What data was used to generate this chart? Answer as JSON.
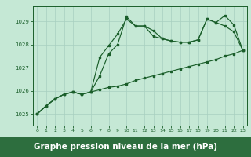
{
  "background_color": "#c5e8d5",
  "grid_color": "#a8cfc0",
  "line_color": "#1a5e2a",
  "title": "Graphe pression niveau de la mer (hPa)",
  "title_fontsize": 7.5,
  "title_bg": "#2d6e3e",
  "ylim": [
    1024.5,
    1029.65
  ],
  "yticks": [
    1025,
    1026,
    1027,
    1028,
    1029
  ],
  "xlim": [
    -0.5,
    23.5
  ],
  "xticks": [
    0,
    1,
    2,
    3,
    4,
    5,
    6,
    7,
    8,
    9,
    10,
    11,
    12,
    13,
    14,
    15,
    16,
    17,
    18,
    19,
    20,
    21,
    22,
    23
  ],
  "series1_y": [
    1025.0,
    1025.35,
    1025.65,
    1025.85,
    1025.95,
    1025.85,
    1025.95,
    1026.05,
    1026.15,
    1026.2,
    1026.3,
    1026.45,
    1026.55,
    1026.65,
    1026.75,
    1026.85,
    1026.95,
    1027.05,
    1027.15,
    1027.25,
    1027.35,
    1027.5,
    1027.6,
    1027.75
  ],
  "series2_y": [
    1025.0,
    1025.35,
    1025.65,
    1025.85,
    1025.95,
    1025.85,
    1025.95,
    1027.45,
    1027.95,
    1028.45,
    1029.1,
    1028.8,
    1028.8,
    1028.35,
    1028.25,
    1028.15,
    1028.1,
    1028.1,
    1028.2,
    1029.1,
    1028.95,
    1028.8,
    1028.55,
    1027.75
  ],
  "series3_y": [
    1025.0,
    1025.35,
    1025.65,
    1025.85,
    1025.95,
    1025.85,
    1025.95,
    1026.65,
    1027.6,
    1028.0,
    1029.2,
    1028.8,
    1028.8,
    1028.6,
    1028.25,
    1028.15,
    1028.1,
    1028.1,
    1028.2,
    1029.1,
    1028.95,
    1029.25,
    1028.85,
    1027.75
  ]
}
